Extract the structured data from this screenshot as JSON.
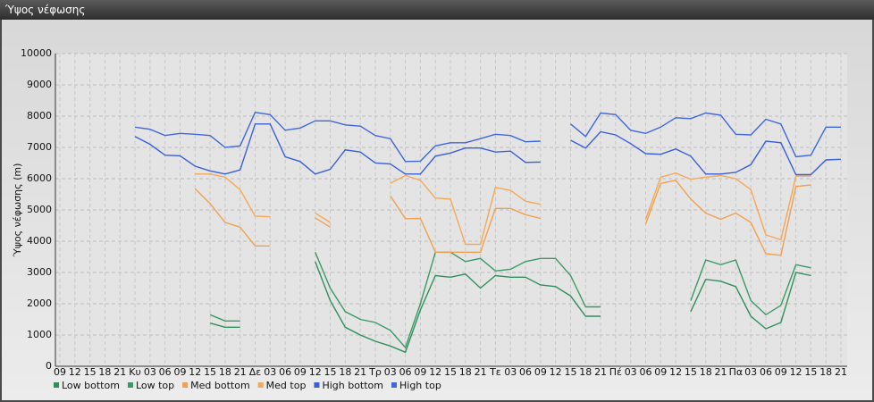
{
  "chart_data": {
    "type": "line",
    "title": "Ύψος νέφωσης",
    "ylabel": "Ύψος νέφωσης (m)",
    "categories": [
      "09",
      "12",
      "15",
      "18",
      "21",
      "Κυ",
      "03",
      "06",
      "09",
      "12",
      "15",
      "18",
      "21",
      "Δε",
      "03",
      "06",
      "09",
      "12",
      "15",
      "18",
      "21",
      "Τρ",
      "03",
      "06",
      "09",
      "12",
      "15",
      "18",
      "21",
      "Τε",
      "03",
      "06",
      "09",
      "12",
      "15",
      "18",
      "21",
      "Πέ",
      "03",
      "06",
      "09",
      "12",
      "15",
      "18",
      "21",
      "Πα",
      "03",
      "06",
      "09",
      "12",
      "15",
      "18",
      "21"
    ],
    "ylim": [
      0,
      10000
    ],
    "yticks": [
      0,
      1000,
      2000,
      3000,
      4000,
      5000,
      6000,
      7000,
      8000,
      9000,
      10000
    ],
    "grid": true,
    "series": [
      {
        "name": "Low bottom",
        "color": "#2f8f5a",
        "values": [
          null,
          null,
          null,
          null,
          null,
          null,
          null,
          null,
          null,
          null,
          1380,
          1250,
          1250,
          null,
          null,
          null,
          null,
          3350,
          2100,
          1250,
          1000,
          800,
          650,
          450,
          1800,
          2900,
          2850,
          2950,
          2500,
          2900,
          2850,
          2850,
          2600,
          2550,
          2250,
          1600,
          1600,
          null,
          null,
          null,
          null,
          null,
          1750,
          2780,
          2720,
          2550,
          1600,
          1200,
          1400,
          3000,
          2900,
          null,
          null
        ]
      },
      {
        "name": "Low top",
        "color": "#3a9a66",
        "values": [
          null,
          null,
          null,
          null,
          null,
          null,
          null,
          null,
          null,
          null,
          1650,
          1450,
          1450,
          null,
          null,
          null,
          null,
          3650,
          2500,
          1750,
          1500,
          1400,
          1150,
          600,
          2000,
          3650,
          3650,
          3350,
          3450,
          3050,
          3100,
          3350,
          3450,
          3450,
          2900,
          1900,
          1900,
          null,
          null,
          null,
          null,
          null,
          2100,
          3400,
          3250,
          3400,
          2100,
          1650,
          1950,
          3250,
          3150,
          null,
          null
        ]
      },
      {
        "name": "Med bottom",
        "color": "#f0a050",
        "values": [
          null,
          null,
          null,
          null,
          null,
          null,
          null,
          null,
          null,
          5680,
          5200,
          4600,
          4450,
          3850,
          3850,
          null,
          null,
          4750,
          4450,
          null,
          null,
          null,
          5450,
          4720,
          4730,
          3650,
          3650,
          3650,
          3650,
          5050,
          5050,
          4850,
          4730,
          null,
          null,
          null,
          null,
          null,
          null,
          4550,
          5850,
          5950,
          5350,
          4900,
          4700,
          4900,
          4600,
          3600,
          3550,
          5750,
          5800,
          null,
          null
        ]
      },
      {
        "name": "Med top",
        "color": "#f5a858",
        "values": [
          null,
          null,
          null,
          null,
          null,
          null,
          null,
          null,
          null,
          6150,
          6150,
          6050,
          5650,
          4800,
          4780,
          null,
          null,
          4900,
          4600,
          null,
          null,
          null,
          5850,
          6100,
          5950,
          5380,
          5350,
          3900,
          3900,
          5720,
          5630,
          5280,
          5180,
          null,
          null,
          null,
          null,
          null,
          null,
          4700,
          6050,
          6180,
          5980,
          6050,
          6100,
          6000,
          5650,
          4200,
          4050,
          6080,
          6080,
          null,
          null
        ]
      },
      {
        "name": "High bottom",
        "color": "#3a5fd8",
        "values": [
          null,
          null,
          null,
          null,
          null,
          7350,
          7100,
          6750,
          6730,
          6400,
          6250,
          6150,
          6280,
          7750,
          7750,
          6700,
          6550,
          6150,
          6300,
          6920,
          6850,
          6500,
          6470,
          6150,
          6150,
          6720,
          6820,
          6980,
          6980,
          6850,
          6880,
          6520,
          6530,
          null,
          7230,
          6980,
          7500,
          7400,
          7120,
          6800,
          6780,
          6950,
          6720,
          6150,
          6150,
          6200,
          6450,
          7200,
          7150,
          6130,
          6130,
          6600,
          6620
        ]
      },
      {
        "name": "High top",
        "color": "#4066dc",
        "values": [
          null,
          null,
          null,
          null,
          null,
          7650,
          7580,
          7380,
          7450,
          7420,
          7380,
          7000,
          7050,
          8120,
          8050,
          7550,
          7620,
          7850,
          7850,
          7720,
          7680,
          7380,
          7280,
          6550,
          6560,
          7050,
          7150,
          7150,
          7280,
          7420,
          7380,
          7180,
          7200,
          null,
          7750,
          7350,
          8100,
          8050,
          7550,
          7450,
          7650,
          7950,
          7920,
          8100,
          8030,
          7420,
          7400,
          7900,
          7750,
          6700,
          6750,
          7650,
          7650
        ]
      }
    ]
  }
}
